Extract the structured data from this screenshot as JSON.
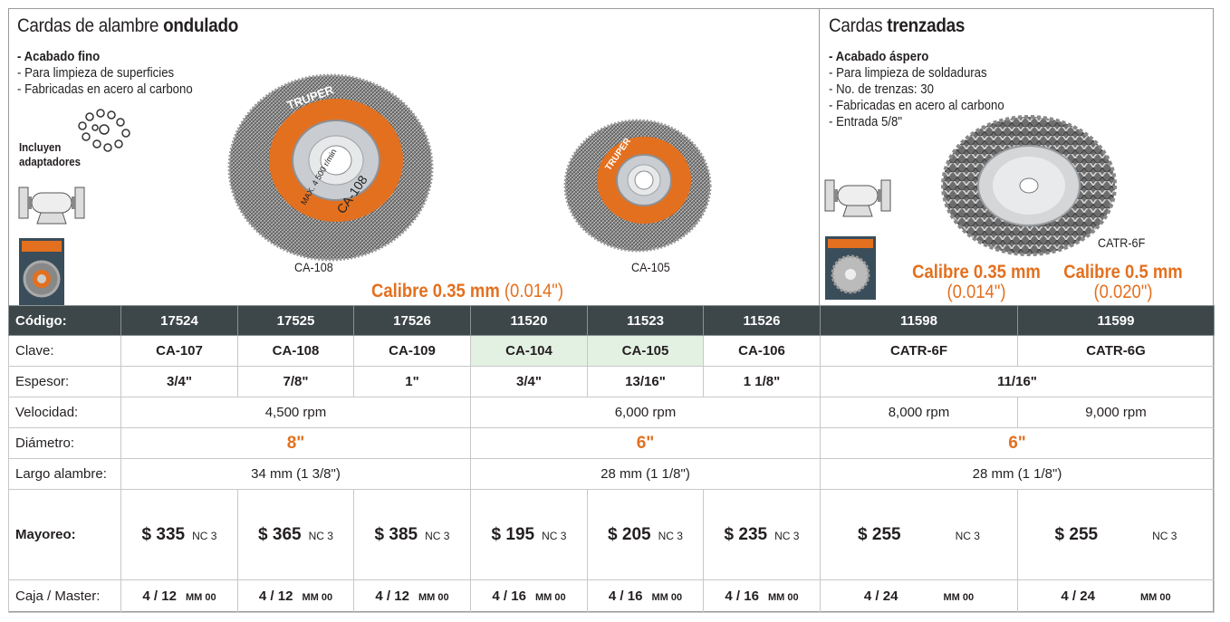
{
  "left_section": {
    "title_light": "Cardas de alambre ",
    "title_bold": "ondulado",
    "bullets": [
      "- Acabado fino",
      "- Para limpieza de superficies",
      "- Fabricadas en acero al carbono"
    ],
    "adapters_line1": "Incluyen",
    "adapters_line2": "adaptadores",
    "wheel1_label": "CA-108",
    "wheel2_label": "CA-105",
    "wheel1_brand": "TRUPER",
    "wheel1_text1": "CA-108",
    "wheel1_text2": "MAX. 4 500 r/min",
    "wheel2_brand": "TRUPER",
    "calibre_bold": "Calibre 0.35 mm",
    "calibre_thin": " (0.014\")"
  },
  "right_section": {
    "title_light": "Cardas ",
    "title_bold": "trenzadas",
    "bullets": [
      "- Acabado áspero",
      "- Para limpieza de soldaduras",
      "- No. de trenzas: 30",
      "- Fabricadas en acero al carbono",
      "- Entrada "
    ],
    "entrada_frac": "5/8\"",
    "wheel_label": "CATR-6F",
    "calibre1_bold": "Calibre 0.35 mm",
    "calibre1_thin": "(0.014\")",
    "calibre2_bold": "Calibre 0.5 mm",
    "calibre2_thin": "(0.020\")"
  },
  "table": {
    "row_labels": {
      "codigo": "Código:",
      "clave": "Clave:",
      "espesor": "Espesor:",
      "velocidad": "Velocidad:",
      "diametro": "Diámetro:",
      "largo": "Largo alambre:",
      "mayoreo": "Mayoreo:",
      "caja": "Caja / Master:"
    },
    "codigos": [
      "17524",
      "17525",
      "17526",
      "11520",
      "11523",
      "11526",
      "11598",
      "11599"
    ],
    "claves": [
      "CA-107",
      "CA-108",
      "CA-109",
      "CA-104",
      "CA-105",
      "CA-106",
      "CATR-6F",
      "CATR-6G"
    ],
    "espesor": [
      "3/4\"",
      "7/8\"",
      "1\"",
      "3/4\"",
      "13/16\"",
      "1 1/8\"",
      "11/16\""
    ],
    "velocidad": [
      "4,500 rpm",
      "6,000 rpm",
      "8,000 rpm",
      "9,000 rpm"
    ],
    "diametro": [
      "8\"",
      "6\"",
      "6\""
    ],
    "largo": [
      "34 mm (1 3/8\")",
      "28 mm (1 1/8\")",
      "28 mm (1 1/8\")"
    ],
    "precios": [
      "$ 335",
      "$ 365",
      "$ 385",
      "$ 195",
      "$ 205",
      "$ 235",
      "$ 255",
      "$ 255"
    ],
    "nc": "NC 3",
    "caja": [
      "4 / 12",
      "4 / 12",
      "4 / 12",
      "4 / 16",
      "4 / 16",
      "4 / 16",
      "4 / 24",
      "4 / 24"
    ],
    "mm": "MM 00"
  },
  "colors": {
    "accent_orange": "#e3701f",
    "header_dark": "#3d4649",
    "highlight_green": "#e3f1e3"
  }
}
